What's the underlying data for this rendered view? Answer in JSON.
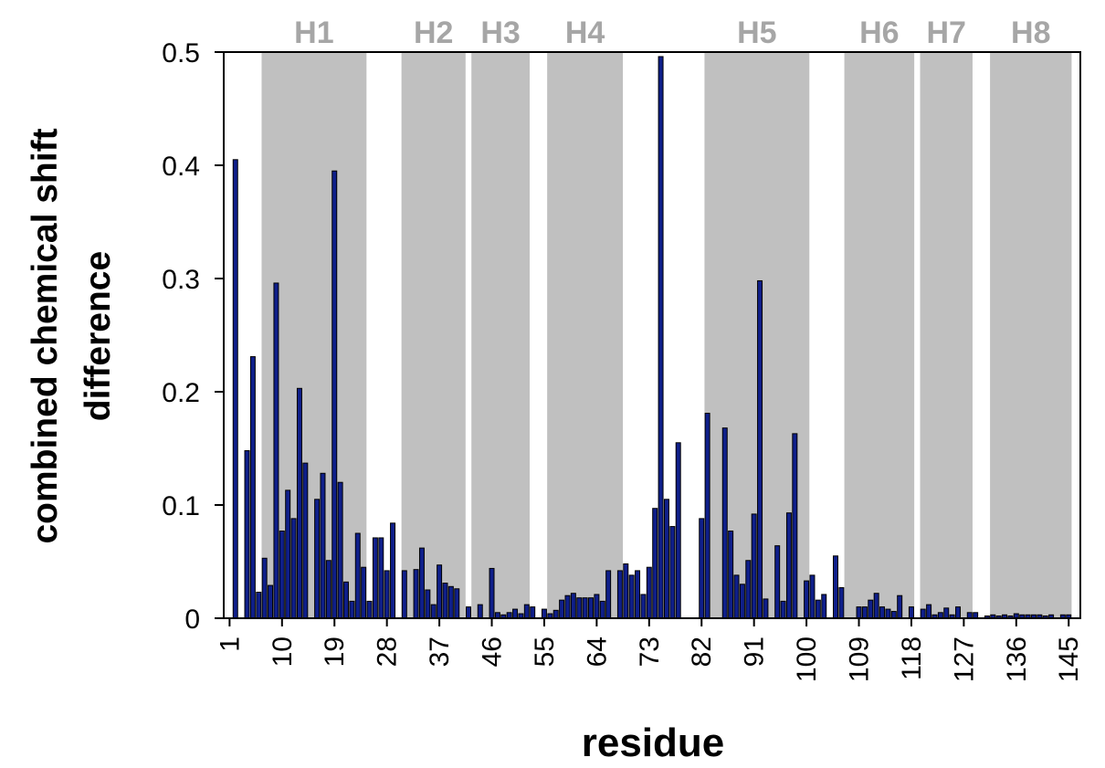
{
  "chart_data": {
    "type": "bar",
    "xlabel": "residue",
    "ylabel_lines": [
      "combined chemical shift",
      "difference"
    ],
    "ylim": [
      0,
      0.5
    ],
    "yticks": [
      0,
      0.1,
      0.2,
      0.3,
      0.4,
      0.5
    ],
    "ytick_labels": [
      "0",
      "0.1",
      "0.2",
      "0.3",
      "0.4",
      "0.5"
    ],
    "xlim": [
      0,
      147
    ],
    "xticks": [
      1,
      10,
      19,
      28,
      37,
      46,
      55,
      64,
      73,
      82,
      91,
      100,
      109,
      118,
      127,
      136,
      145
    ],
    "grid": false,
    "colors": {
      "bar_fill": "#0f1f8a",
      "bar_edge": "#000000",
      "helix_band": "#c0c0c0",
      "helix_label": "#a6a6a6"
    },
    "helices": [
      {
        "label": "H1",
        "start": 7,
        "end": 24
      },
      {
        "label": "H2",
        "start": 31,
        "end": 41
      },
      {
        "label": "H3",
        "start": 43,
        "end": 52
      },
      {
        "label": "H4",
        "start": 56,
        "end": 68
      },
      {
        "label": "H5",
        "start": 83,
        "end": 100
      },
      {
        "label": "H6",
        "start": 107,
        "end": 118
      },
      {
        "label": "H7",
        "start": 120,
        "end": 128
      },
      {
        "label": "H8",
        "start": 132,
        "end": 145
      }
    ],
    "series": [
      {
        "x": [
          2,
          4,
          5,
          6,
          7,
          8,
          9,
          10,
          11,
          12,
          13,
          14,
          16,
          17,
          18,
          19,
          20,
          21,
          22,
          23,
          24,
          25,
          26,
          27,
          28,
          29,
          31,
          33,
          34,
          35,
          36,
          37,
          38,
          39,
          40,
          42,
          44,
          46,
          47,
          48,
          49,
          50,
          51,
          52,
          53,
          55,
          56,
          57,
          58,
          59,
          60,
          61,
          62,
          63,
          64,
          65,
          66,
          68,
          69,
          70,
          71,
          72,
          73,
          74,
          75,
          76,
          77,
          78,
          82,
          83,
          86,
          87,
          88,
          89,
          90,
          91,
          92,
          93,
          95,
          96,
          97,
          98,
          100,
          101,
          102,
          103,
          105,
          106,
          109,
          110,
          111,
          112,
          113,
          114,
          115,
          116,
          118,
          120,
          121,
          122,
          123,
          124,
          125,
          126,
          128,
          129,
          131,
          132,
          133,
          134,
          135,
          136,
          137,
          138,
          139,
          140,
          141,
          142,
          144,
          145
        ],
        "values": [
          0.405,
          0.148,
          0.231,
          0.023,
          0.053,
          0.029,
          0.296,
          0.077,
          0.113,
          0.088,
          0.203,
          0.137,
          0.105,
          0.128,
          0.051,
          0.395,
          0.12,
          0.032,
          0.015,
          0.075,
          0.045,
          0.015,
          0.071,
          0.071,
          0.042,
          0.084,
          0.042,
          0.043,
          0.062,
          0.025,
          0.012,
          0.047,
          0.031,
          0.028,
          0.026,
          0.01,
          0.012,
          0.044,
          0.005,
          0.003,
          0.005,
          0.008,
          0.004,
          0.012,
          0.01,
          0.008,
          0.004,
          0.007,
          0.016,
          0.02,
          0.022,
          0.018,
          0.018,
          0.018,
          0.021,
          0.015,
          0.042,
          0.042,
          0.048,
          0.038,
          0.042,
          0.021,
          0.045,
          0.097,
          0.496,
          0.105,
          0.081,
          0.155,
          0.088,
          0.181,
          0.168,
          0.077,
          0.038,
          0.03,
          0.051,
          0.092,
          0.298,
          0.017,
          0.064,
          0.015,
          0.093,
          0.163,
          0.033,
          0.038,
          0.016,
          0.021,
          0.055,
          0.027,
          0.01,
          0.01,
          0.016,
          0.022,
          0.01,
          0.008,
          0.006,
          0.02,
          0.01,
          0.008,
          0.012,
          0.003,
          0.005,
          0.009,
          0.003,
          0.01,
          0.005,
          0.005,
          0.002,
          0.003,
          0.002,
          0.003,
          0.002,
          0.004,
          0.003,
          0.003,
          0.003,
          0.003,
          0.002,
          0.003,
          0.003,
          0.003
        ]
      }
    ]
  }
}
